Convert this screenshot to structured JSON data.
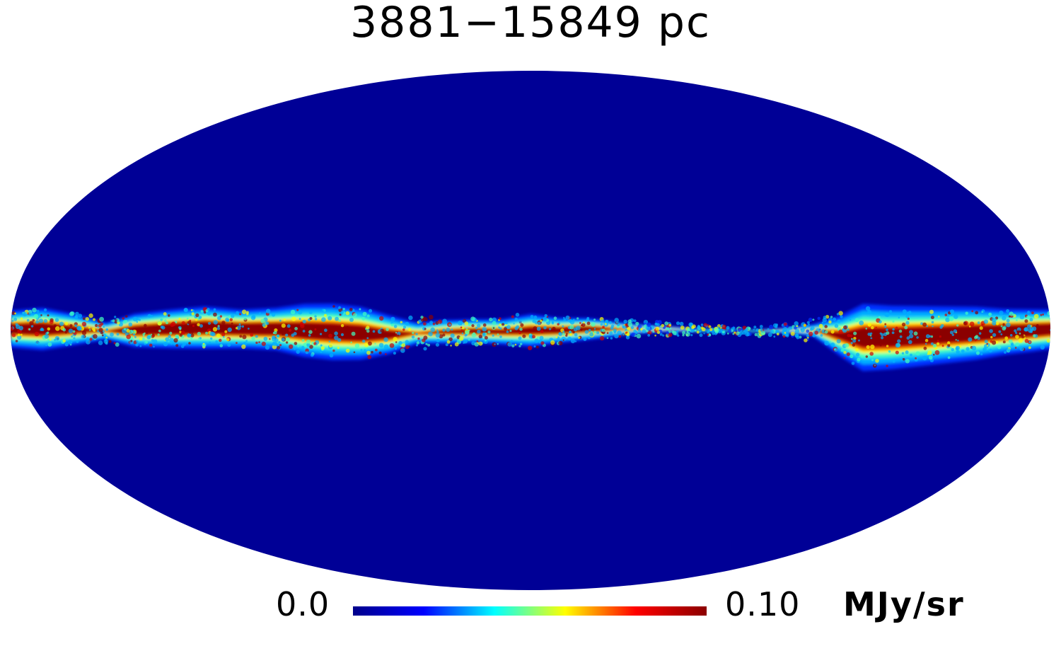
{
  "title": "3881−15849 pc",
  "projection": "mollweide",
  "map": {
    "background_value_color": "#000096",
    "feature": "galactic plane emission band",
    "band_colors": [
      "#0030ff",
      "#00b0ff",
      "#40ffc0",
      "#ffff00",
      "#ff9000",
      "#d00000",
      "#8b0000"
    ]
  },
  "colorbar": {
    "min_label": "0.0",
    "max_label": "0.10",
    "unit": "MJy/sr",
    "min": 0.0,
    "max": 0.1,
    "colormap": "jet",
    "stops": [
      "#00008b",
      "#0000ff",
      "#00ffff",
      "#ffff00",
      "#ff0000",
      "#8b0000"
    ]
  }
}
